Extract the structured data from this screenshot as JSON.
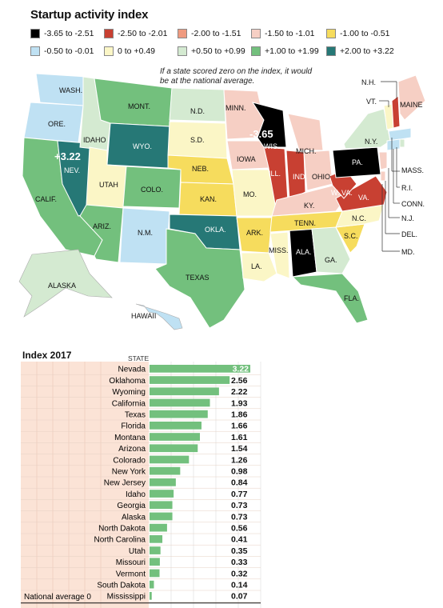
{
  "title": "Startup activity index",
  "legend": [
    {
      "label": "-3.65 to -2.51",
      "color": "#000000"
    },
    {
      "label": "-2.50 to -2.01",
      "color": "#c84032"
    },
    {
      "label": "-2.00 to -1.51",
      "color": "#ef9a7f"
    },
    {
      "label": "-1.50 to -1.01",
      "color": "#f6cfc4"
    },
    {
      "label": "-1.00 to -0.51",
      "color": "#f6dc5d"
    },
    {
      "label": "-0.50 to -0.01",
      "color": "#bfe1f3"
    },
    {
      "label": "0 to +0.49",
      "color": "#fbf6c6"
    },
    {
      "label": "+0.50 to +0.99",
      "color": "#d4ead1"
    },
    {
      "label": "+1.00 to +1.99",
      "color": "#73c07d"
    },
    {
      "label": "+2.00 to +3.22",
      "color": "#267876"
    }
  ],
  "map": {
    "note": "If a state scored zero on the index, it would be at the national average.",
    "callouts": [
      {
        "id": "nv",
        "value": "+3.22",
        "state": "NEV."
      },
      {
        "id": "wi",
        "value": "-3.65",
        "state": "WIS."
      }
    ],
    "labels": [
      "WASH.",
      "ORE.",
      "IDAHO",
      "MONT.",
      "WYO.",
      "N.D.",
      "S.D.",
      "NEB.",
      "MINN.",
      "IOWA",
      "ILL.",
      "IND.",
      "OHIO",
      "MICH.",
      "PA.",
      "N.Y.",
      "VT.",
      "N.H.",
      "MAINE",
      "MASS.",
      "R.I.",
      "CONN.",
      "N.J.",
      "DEL.",
      "MD.",
      "W. VA.",
      "VA.",
      "KY.",
      "TENN.",
      "N.C.",
      "S.C.",
      "GA.",
      "ALA.",
      "MISS.",
      "LA.",
      "ARK.",
      "MO.",
      "KAN.",
      "OKLA.",
      "TEXAS",
      "N.M.",
      "ARIZ.",
      "UTAH",
      "COLO.",
      "CALIF.",
      "FLA.",
      "ALASKA",
      "HAWAII"
    ]
  },
  "chart_title": "Index 2017",
  "column_header": "STATE",
  "national_average_label": "National average 0",
  "chart_data": {
    "type": "bar",
    "title": "Index 2017",
    "orientation": "horizontal",
    "categories": [
      "Nevada",
      "Oklahoma",
      "Wyoming",
      "California",
      "Texas",
      "Florida",
      "Montana",
      "Arizona",
      "Colorado",
      "New York",
      "New Jersey",
      "Idaho",
      "Georgia",
      "Alaska",
      "North Dakota",
      "North Carolina",
      "Utah",
      "Missouri",
      "Vermont",
      "South Dakota",
      "Mississippi"
    ],
    "values": [
      3.22,
      2.56,
      2.22,
      1.93,
      1.86,
      1.66,
      1.61,
      1.54,
      1.26,
      0.98,
      0.84,
      0.77,
      0.73,
      0.73,
      0.56,
      0.41,
      0.35,
      0.33,
      0.32,
      0.14,
      0.07
    ],
    "value_labels": [
      "3.22",
      "2.56",
      "2.22",
      "1.93",
      "1.86",
      "1.66",
      "1.61",
      "1.54",
      "1.26",
      "0.98",
      "0.84",
      "0.77",
      "0.73",
      "0.73",
      "0.56",
      "0.41",
      "0.35",
      "0.33",
      "0.32",
      "0.14",
      "0.07"
    ],
    "xlim": [
      0,
      3.22
    ],
    "bar_color": "#73c07d"
  }
}
